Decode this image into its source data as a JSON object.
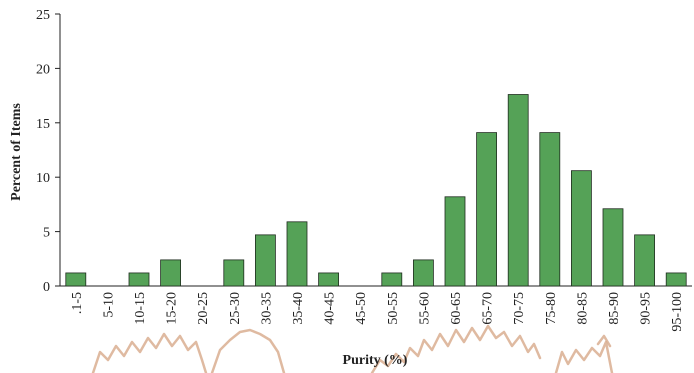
{
  "chart_data": {
    "type": "bar",
    "title": "",
    "xlabel": "Purity (%)",
    "ylabel": "Percent of Items",
    "ylim": [
      0,
      25
    ],
    "yticks": [
      "0",
      "5",
      "10",
      "15",
      "20",
      "25"
    ],
    "grid": false,
    "categories": [
      ".1-5",
      "5-10",
      "10-15",
      "15-20",
      "20-25",
      "25-30",
      "30-35",
      "35-40",
      "40-45",
      "45-50",
      "50-55",
      "55-60",
      "60-65",
      "65-70",
      "70-75",
      "75-80",
      "80-85",
      "85-90",
      "90-95",
      "95-100"
    ],
    "values": [
      1.2,
      0,
      1.2,
      2.4,
      0,
      2.4,
      4.7,
      5.9,
      1.2,
      0,
      1.2,
      2.4,
      8.2,
      14.1,
      17.6,
      14.1,
      10.6,
      7.1,
      4.7,
      1.2
    ],
    "colors": {
      "bar": "#55a257",
      "bar_edge": "#1f2d1f",
      "watermark": "#d9ae90"
    }
  }
}
